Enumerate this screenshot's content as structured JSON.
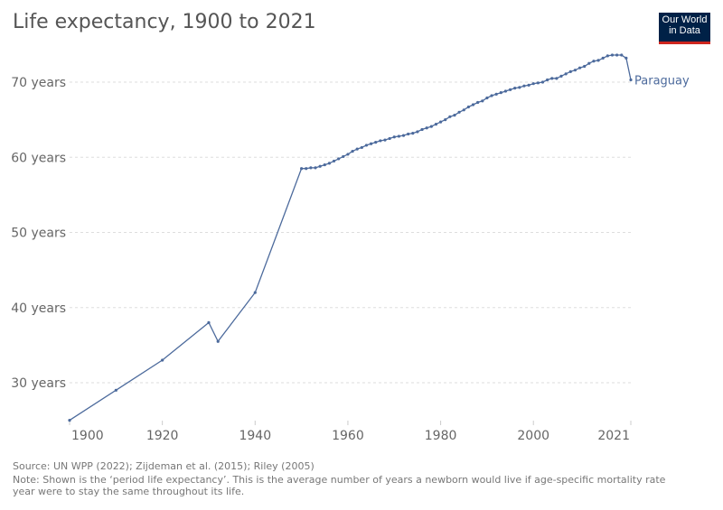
{
  "title": "Life expectancy, 1900 to 2021",
  "logo": {
    "line1": "Our World",
    "line2": "in Data"
  },
  "footer": {
    "source": "Source: UN WPP (2022); Zijdeman et al. (2015); Riley (2005)",
    "note_line1": "Note: Shown is the ‘period life expectancy’. This is the average number of years a newborn would live if age-specific mortality rate",
    "note_line2": "year were to stay the same throughout its life."
  },
  "chart_data": {
    "type": "line",
    "title": "Life expectancy, 1900 to 2021",
    "xlim": [
      1900,
      2021
    ],
    "ylim": [
      25,
      75
    ],
    "grid": "horizontal dashed",
    "x_ticks": [
      1900,
      1920,
      1940,
      1960,
      1980,
      2000,
      2021
    ],
    "y_ticks": [
      30,
      40,
      50,
      60,
      70
    ],
    "y_tick_labels": [
      "30 years",
      "40 years",
      "50 years",
      "60 years",
      "70 years"
    ],
    "colors": {
      "line": "#4c6a9c"
    },
    "series": [
      {
        "name": "Paraguay",
        "x": [
          1900,
          1910,
          1920,
          1930,
          1932,
          1940,
          1950,
          1951,
          1952,
          1953,
          1954,
          1955,
          1956,
          1957,
          1958,
          1959,
          1960,
          1961,
          1962,
          1963,
          1964,
          1965,
          1966,
          1967,
          1968,
          1969,
          1970,
          1971,
          1972,
          1973,
          1974,
          1975,
          1976,
          1977,
          1978,
          1979,
          1980,
          1981,
          1982,
          1983,
          1984,
          1985,
          1986,
          1987,
          1988,
          1989,
          1990,
          1991,
          1992,
          1993,
          1994,
          1995,
          1996,
          1997,
          1998,
          1999,
          2000,
          2001,
          2002,
          2003,
          2004,
          2005,
          2006,
          2007,
          2008,
          2009,
          2010,
          2011,
          2012,
          2013,
          2014,
          2015,
          2016,
          2017,
          2018,
          2019,
          2020,
          2021
        ],
        "y": [
          25.0,
          29.0,
          33.0,
          38.0,
          35.5,
          42.0,
          58.5,
          58.5,
          58.6,
          58.6,
          58.8,
          59.0,
          59.2,
          59.5,
          59.8,
          60.1,
          60.4,
          60.8,
          61.1,
          61.3,
          61.6,
          61.8,
          62.0,
          62.2,
          62.3,
          62.5,
          62.7,
          62.8,
          62.9,
          63.1,
          63.2,
          63.4,
          63.7,
          63.9,
          64.1,
          64.4,
          64.7,
          65.0,
          65.4,
          65.6,
          66.0,
          66.3,
          66.7,
          67.0,
          67.3,
          67.5,
          67.9,
          68.2,
          68.4,
          68.6,
          68.8,
          69.0,
          69.2,
          69.3,
          69.5,
          69.6,
          69.8,
          69.9,
          70.0,
          70.3,
          70.5,
          70.5,
          70.8,
          71.1,
          71.4,
          71.6,
          71.9,
          72.1,
          72.5,
          72.8,
          72.9,
          73.2,
          73.5,
          73.6,
          73.6,
          73.6,
          73.2,
          70.3
        ]
      }
    ]
  }
}
